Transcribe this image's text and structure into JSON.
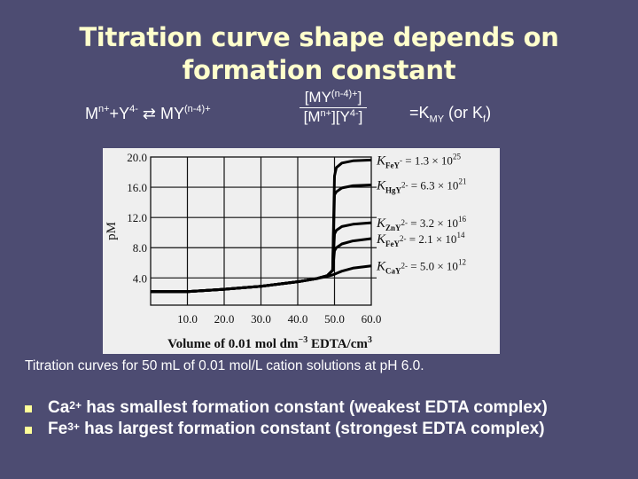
{
  "slide": {
    "title_line1": "Titration curve shape depends on",
    "title_line2": "formation constant",
    "equation": {
      "reactant_metal": "M",
      "reactant_metal_charge": "n+",
      "plus": "+",
      "ligand": "Y",
      "ligand_charge": "4-",
      "arrow": "⇄",
      "product": "MY",
      "product_charge": "(n-4)+",
      "fraction_numerator": "[MY",
      "fraction_numerator_charge": "(n-4)+",
      "fraction_numerator_close": "]",
      "fraction_denominator_a": "[M",
      "fraction_denominator_a_charge": "n+",
      "fraction_denominator_b": "][Y",
      "fraction_denominator_b_charge": "4-",
      "fraction_denominator_close": "]",
      "equals": "=K",
      "k_subscript": "MY",
      "or_text": " (or K",
      "kf_subscript": "f",
      "close_paren": ")"
    },
    "caption": "Titration curves for 50 mL of 0.01 mol/L cation solutions at pH 6.0.",
    "bullets": [
      {
        "ion": "Ca",
        "charge": "2+",
        "text": " has smallest formation constant (weakest EDTA complex)"
      },
      {
        "ion": "Fe",
        "charge": "3+",
        "text": " has largest formation constant (strongest EDTA complex)"
      }
    ],
    "colors": {
      "background": "#4d4c72",
      "title": "#ffffcc",
      "bullet": "#ffff99",
      "text": "#ffffff"
    }
  },
  "chart_data": {
    "type": "line",
    "title": "",
    "xlabel": "Volume of 0.01 mol dm-3 EDTA/cm3",
    "ylabel": "pM",
    "xlim": [
      0,
      60
    ],
    "ylim": [
      0.4,
      20
    ],
    "x_ticks": [
      "10.0",
      "20.0",
      "30.0",
      "40.0",
      "50.0",
      "60.0"
    ],
    "y_ticks": [
      "4.0",
      "8.0",
      "12.0",
      "16.0",
      "20.0"
    ],
    "grid": true,
    "legend_position": "right (inline labels)",
    "x": [
      0,
      10,
      20,
      30,
      40,
      45,
      48,
      49.5,
      50,
      50.5,
      52,
      55,
      60
    ],
    "series": [
      {
        "name": "K_FeY- = 1.3 × 10^25",
        "label_main": "K",
        "label_sub": "FeY",
        "label_charge": "-",
        "label_value": " = 1.3 × 10",
        "label_exp": "25",
        "values": [
          2.2,
          2.2,
          2.5,
          2.9,
          3.5,
          3.9,
          4.3,
          5.0,
          17.5,
          18.6,
          19.2,
          19.5,
          19.6
        ]
      },
      {
        "name": "K_HgY2- = 6.3 × 10^21",
        "label_main": "K",
        "label_sub": "HgY",
        "label_charge": "2-",
        "label_value": " = 6.3 × 10",
        "label_exp": "21",
        "values": [
          2.2,
          2.2,
          2.5,
          2.9,
          3.5,
          3.9,
          4.3,
          5.0,
          15.0,
          15.4,
          15.9,
          16.2,
          16.3
        ]
      },
      {
        "name": "K_ZnY2- = 3.2 × 10^16",
        "label_main": "K",
        "label_sub": "ZnY",
        "label_charge": "2-",
        "label_value": " = 3.2 × 10",
        "label_exp": "16",
        "values": [
          2.2,
          2.2,
          2.5,
          2.9,
          3.5,
          3.9,
          4.3,
          5.0,
          9.8,
          10.3,
          10.8,
          11.1,
          11.3
        ]
      },
      {
        "name": "K_FeY2- = 2.1 × 10^14",
        "label_main": "K",
        "label_sub": "FeY",
        "label_charge": "2-",
        "label_value": " = 2.1 × 10",
        "label_exp": "14",
        "values": [
          2.2,
          2.2,
          2.5,
          2.9,
          3.5,
          3.9,
          4.3,
          5.0,
          7.6,
          8.0,
          8.5,
          8.9,
          9.2
        ]
      },
      {
        "name": "K_CaY2- = 5.0 × 10^12",
        "label_main": "K",
        "label_sub": "CaY",
        "label_charge": "2-",
        "label_value": " = 5.0 × 10",
        "label_exp": "12",
        "values": [
          2.2,
          2.2,
          2.5,
          2.9,
          3.5,
          3.9,
          4.2,
          4.4,
          4.5,
          4.6,
          4.9,
          5.3,
          5.6
        ]
      }
    ]
  }
}
